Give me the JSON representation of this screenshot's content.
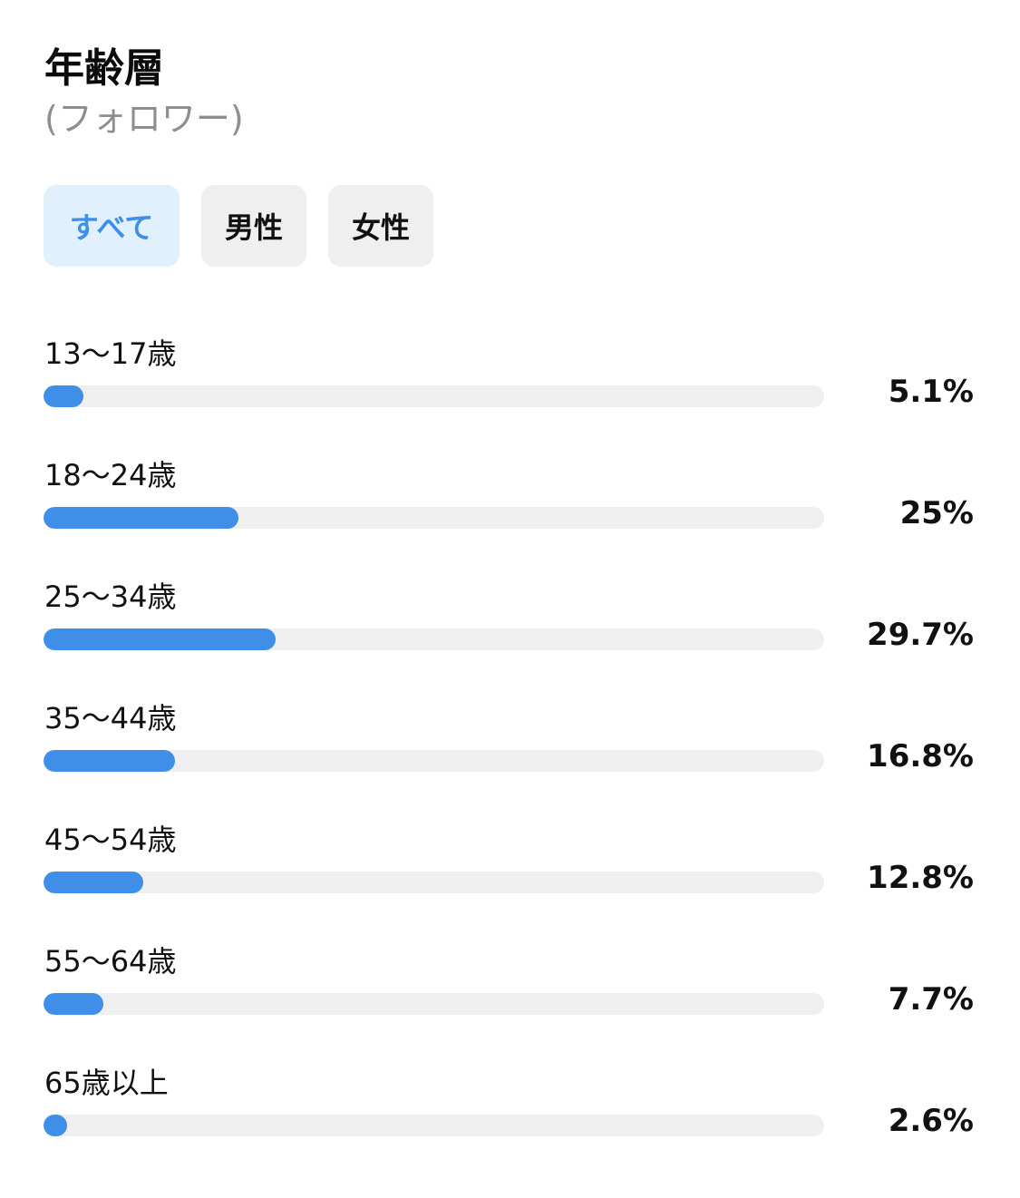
{
  "header": {
    "title": "年齢層",
    "subtitle": "(フォロワー)"
  },
  "tabs": [
    {
      "label": "すべて",
      "active": true
    },
    {
      "label": "男性",
      "active": false
    },
    {
      "label": "女性",
      "active": false
    }
  ],
  "colors": {
    "accent": "#3f8fe9",
    "active_tab_bg": "#e1f0fd",
    "track": "#efefef"
  },
  "age_groups": [
    {
      "label": "13〜17歳",
      "value_text": "5.1%",
      "percent": 5.1
    },
    {
      "label": "18〜24歳",
      "value_text": "25%",
      "percent": 25
    },
    {
      "label": "25〜34歳",
      "value_text": "29.7%",
      "percent": 29.7
    },
    {
      "label": "35〜44歳",
      "value_text": "16.8%",
      "percent": 16.8
    },
    {
      "label": "45〜54歳",
      "value_text": "12.8%",
      "percent": 12.8
    },
    {
      "label": "55〜64歳",
      "value_text": "7.7%",
      "percent": 7.7
    },
    {
      "label": "65歳以上",
      "value_text": "2.6%",
      "percent": 2.6
    }
  ]
}
